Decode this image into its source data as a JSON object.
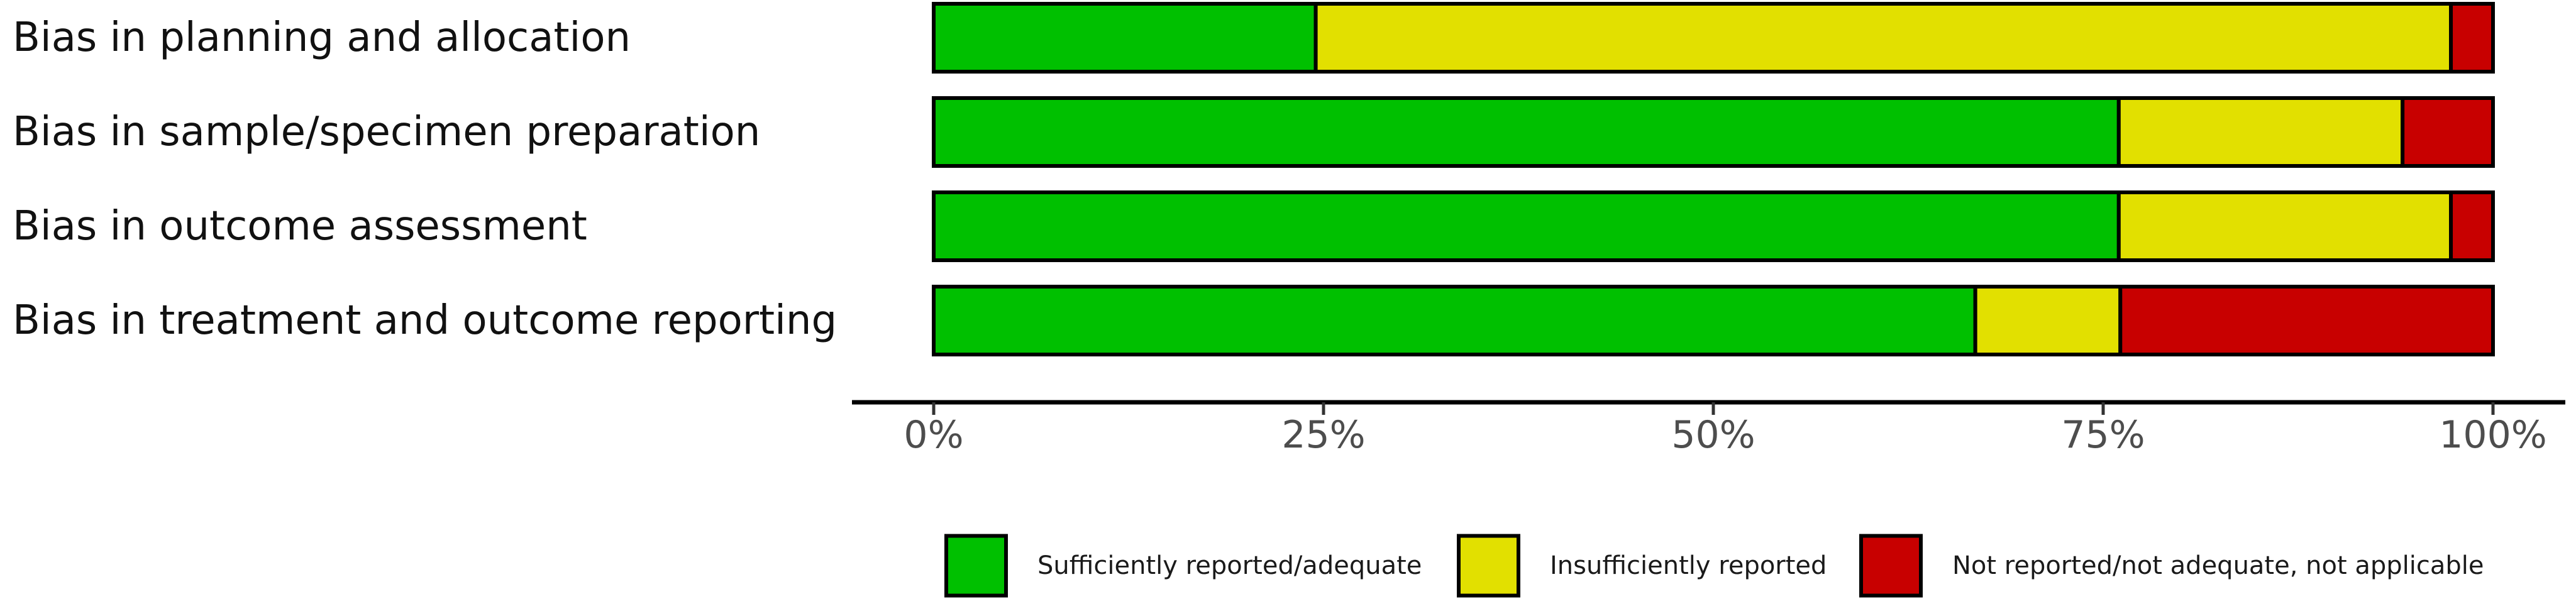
{
  "chart_data": {
    "type": "bar",
    "orientation": "horizontal",
    "stacked": true,
    "percent": true,
    "categories": [
      "Bias in planning and allocation",
      "Bias in sample/specimen preparation",
      "Bias in outcome assessment",
      "Bias in treatment and outcome reporting"
    ],
    "series": [
      {
        "name": "Sufficiently reported/adequate",
        "color": "#00c000",
        "values": [
          24.5,
          76.0,
          76.0,
          66.8
        ]
      },
      {
        "name": "Insufficiently reported",
        "color": "#e2e000",
        "values": [
          72.8,
          18.2,
          21.3,
          9.3
        ]
      },
      {
        "name": "Not reported/not adequate, not applicable",
        "color": "#c80000",
        "values": [
          2.7,
          5.8,
          2.7,
          23.9
        ]
      }
    ],
    "x_ticks": [
      "0%",
      "25%",
      "50%",
      "75%",
      "100%"
    ],
    "xlim": [
      0,
      100
    ],
    "xlabel": "",
    "ylabel": "",
    "title": "",
    "grid": false,
    "legend_position": "bottom"
  }
}
